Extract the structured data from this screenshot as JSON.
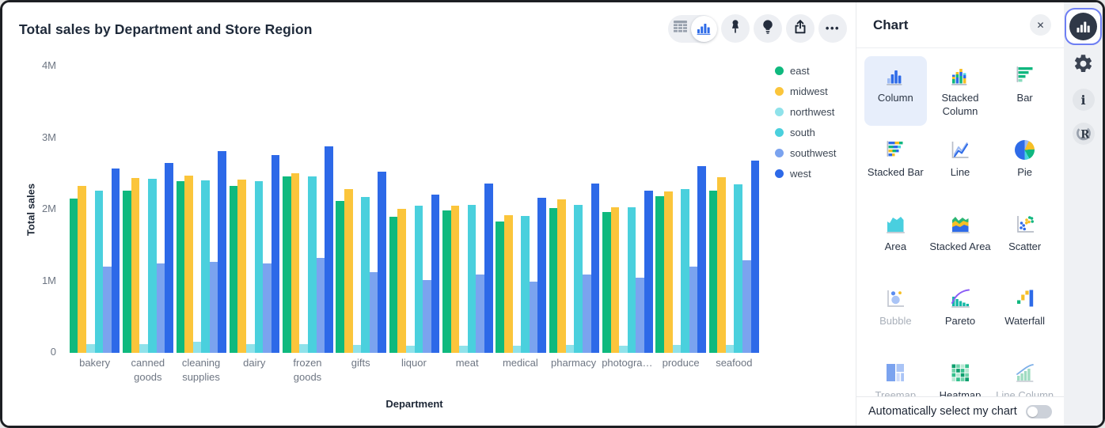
{
  "header": {
    "title": "Total sales by Department and Store Region"
  },
  "toolbar": {
    "icons": [
      "table-view-icon",
      "chart-view-icon",
      "pin-icon",
      "lightbulb-icon",
      "share-icon",
      "more-icon"
    ],
    "more_glyph": "•••"
  },
  "chart_data": {
    "type": "bar",
    "title": "Total sales by Department and Store Region",
    "xlabel": "Department",
    "ylabel": "Total sales",
    "unit": "M",
    "ylim": [
      0,
      4
    ],
    "y_ticks": [
      "0",
      "1M",
      "2M",
      "3M",
      "4M"
    ],
    "grid": false,
    "legend_position": "right",
    "categories": [
      "bakery",
      "canned goods",
      "cleaning supplies",
      "dairy",
      "frozen goods",
      "gifts",
      "liquor",
      "meat",
      "medical",
      "pharmacy",
      "photogra…",
      "produce",
      "seafood"
    ],
    "series": [
      {
        "name": "east",
        "color": "#0fb97e",
        "values": [
          2.15,
          2.27,
          2.4,
          2.33,
          2.46,
          2.12,
          1.9,
          1.99,
          1.84,
          2.02,
          1.97,
          2.19,
          2.27
        ]
      },
      {
        "name": "midwest",
        "color": "#fbc53b",
        "values": [
          2.33,
          2.44,
          2.48,
          2.42,
          2.51,
          2.29,
          2.01,
          2.06,
          1.92,
          2.14,
          2.03,
          2.26,
          2.45
        ]
      },
      {
        "name": "northwest",
        "color": "#8fe2ea",
        "values": [
          0.12,
          0.12,
          0.15,
          0.12,
          0.12,
          0.11,
          0.1,
          0.1,
          0.1,
          0.11,
          0.1,
          0.11,
          0.11
        ]
      },
      {
        "name": "south",
        "color": "#4ad0dd",
        "values": [
          2.27,
          2.43,
          2.41,
          2.4,
          2.47,
          2.18,
          2.06,
          2.07,
          1.91,
          2.07,
          2.03,
          2.29,
          2.35
        ]
      },
      {
        "name": "southwest",
        "color": "#7ba3ef",
        "values": [
          1.2,
          1.25,
          1.27,
          1.25,
          1.33,
          1.13,
          1.02,
          1.09,
          0.99,
          1.09,
          1.05,
          1.21,
          1.29
        ]
      },
      {
        "name": "west",
        "color": "#2d69e8",
        "values": [
          2.58,
          2.65,
          2.82,
          2.76,
          2.88,
          2.53,
          2.21,
          2.37,
          2.17,
          2.37,
          2.27,
          2.61,
          2.69
        ]
      }
    ]
  },
  "panel": {
    "title": "Chart",
    "close_glyph": "✕",
    "chart_types": [
      {
        "label": "Column",
        "icon": "column-icon",
        "selected": true,
        "disabled": false
      },
      {
        "label": "Stacked Column",
        "icon": "stacked-column-icon",
        "selected": false,
        "disabled": false
      },
      {
        "label": "Bar",
        "icon": "bar-icon",
        "selected": false,
        "disabled": false
      },
      {
        "label": "Stacked Bar",
        "icon": "stacked-bar-icon",
        "selected": false,
        "disabled": false
      },
      {
        "label": "Line",
        "icon": "line-icon",
        "selected": false,
        "disabled": false
      },
      {
        "label": "Pie",
        "icon": "pie-icon",
        "selected": false,
        "disabled": false
      },
      {
        "label": "Area",
        "icon": "area-icon",
        "selected": false,
        "disabled": false
      },
      {
        "label": "Stacked Area",
        "icon": "stacked-area-icon",
        "selected": false,
        "disabled": false
      },
      {
        "label": "Scatter",
        "icon": "scatter-icon",
        "selected": false,
        "disabled": false
      },
      {
        "label": "Bubble",
        "icon": "bubble-icon",
        "selected": false,
        "disabled": true
      },
      {
        "label": "Pareto",
        "icon": "pareto-icon",
        "selected": false,
        "disabled": false
      },
      {
        "label": "Waterfall",
        "icon": "waterfall-icon",
        "selected": false,
        "disabled": false
      },
      {
        "label": "Treemap",
        "icon": "treemap-icon",
        "selected": false,
        "disabled": true
      },
      {
        "label": "Heatmap",
        "icon": "heatmap-icon",
        "selected": false,
        "disabled": false
      },
      {
        "label": "Line Column",
        "icon": "line-column-icon",
        "selected": false,
        "disabled": true
      }
    ],
    "auto_select_label": "Automatically select my chart",
    "auto_select_on": false
  },
  "rail": {
    "items": [
      "chart-panel-icon",
      "settings-gear-icon",
      "info-icon",
      "r-console-icon"
    ],
    "info_glyph": "i",
    "r_glyph": "R"
  },
  "colors": {
    "accent_blue": "#2d69e8",
    "selected_cell_bg": "#e7eefb",
    "focus_ring": "#6e7ff3"
  }
}
